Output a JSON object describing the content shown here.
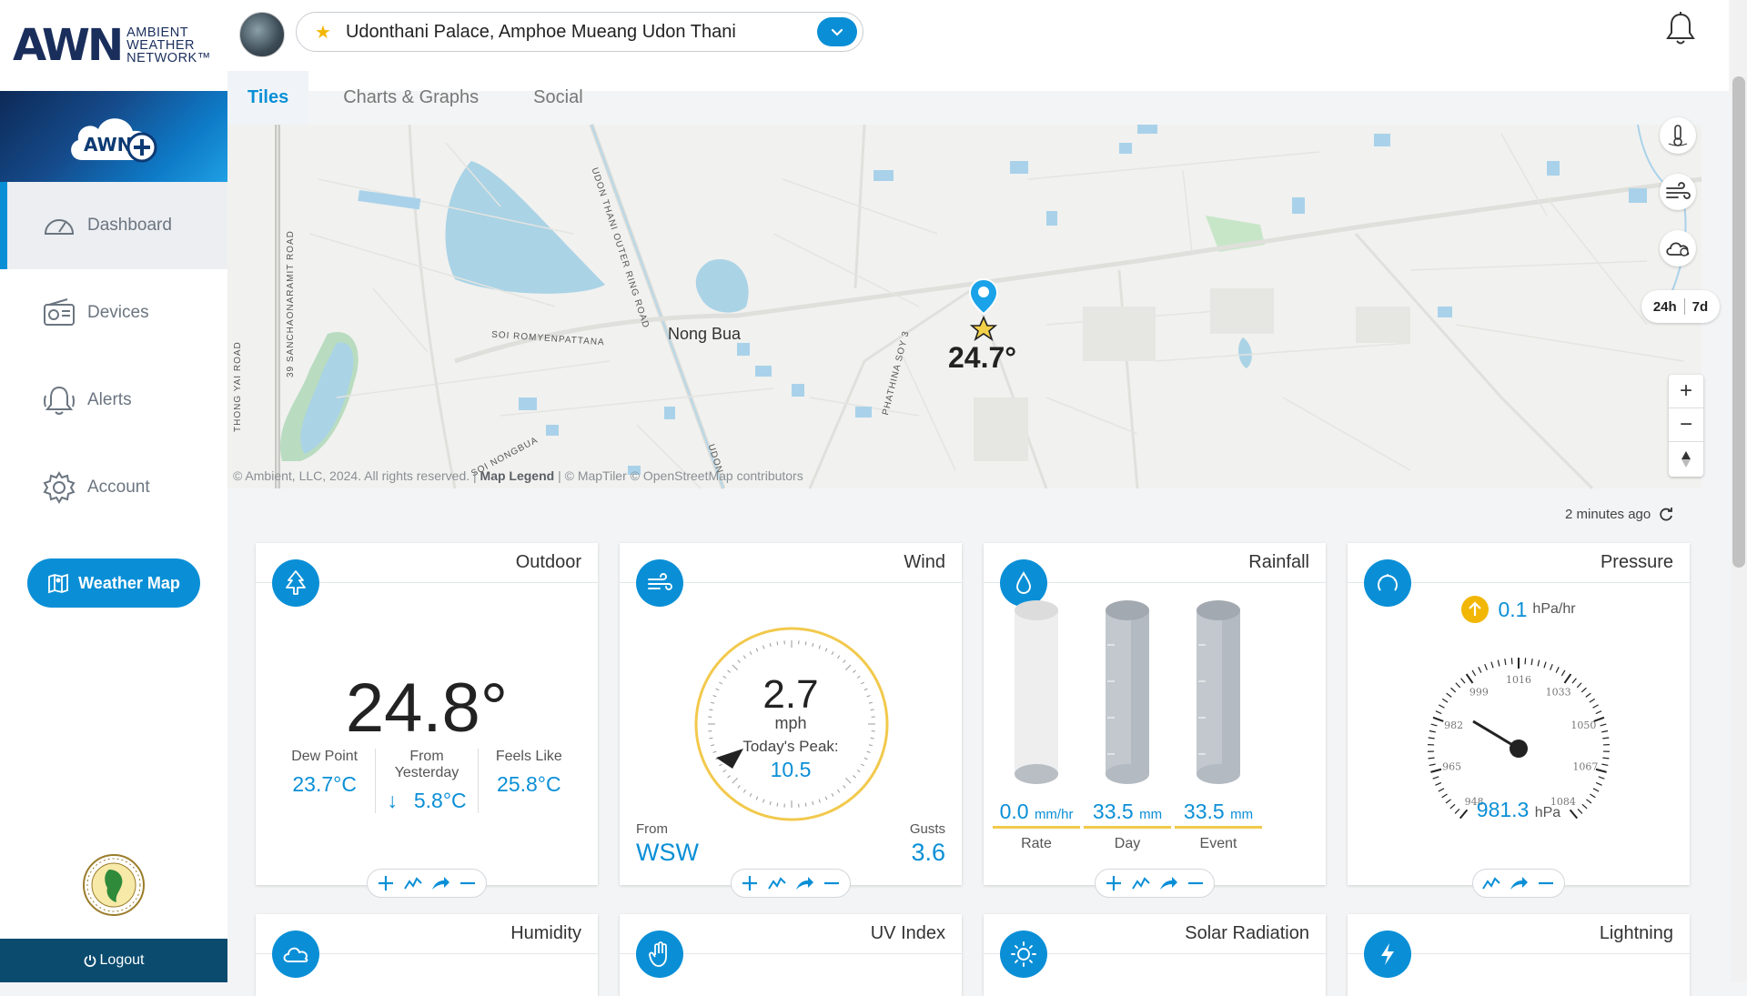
{
  "brand": {
    "logo_mark": "AWN",
    "logo_text": [
      "AMBIENT",
      "WEATHER",
      "NETWORK™"
    ]
  },
  "header": {
    "station_name": "Udonthani Palace, Amphoe Mueang Udon Thani"
  },
  "tabs": [
    {
      "label": "Tiles",
      "active": true
    },
    {
      "label": "Charts & Graphs",
      "active": false
    },
    {
      "label": "Social",
      "active": false
    }
  ],
  "sidebar": {
    "items": [
      {
        "label": "Dashboard",
        "icon": "dashboard-icon",
        "active": true
      },
      {
        "label": "Devices",
        "icon": "devices-icon"
      },
      {
        "label": "Alerts",
        "icon": "alerts-icon"
      },
      {
        "label": "Account",
        "icon": "gear-icon"
      }
    ],
    "weather_map_label": "Weather Map",
    "logout_label": "Logout"
  },
  "map": {
    "town": "Nong Bua",
    "labels": {
      "soi_romyen": "SOI ROMYENPATTANA",
      "soi_nongbua": "SOI NONGBUA",
      "sanchao": "39 SANCHAONARAMIT ROAD",
      "thongyai": "THONG YAI ROAD",
      "outer_ring": "UDON THANI OUTER RING ROAD",
      "udon": "UDON",
      "phathina": "PHATHINA SOY 3"
    },
    "station_temp": "24.7°",
    "attribution_pre": "© Ambient, LLC, 2024. All rights reserved. | ",
    "attribution_legend": "Map Legend",
    "attribution_post": " | © MapTiler © OpenStreetMap contributors",
    "range_24h": "24h",
    "range_7d": "7d"
  },
  "updated": "2 minutes ago",
  "tiles": {
    "outdoor": {
      "title": "Outdoor",
      "temp": "24.8°",
      "dew_label": "Dew Point",
      "dew_value": "23.7°C",
      "yest_label": "From Yesterday",
      "yest_arrow": "↓",
      "yest_value": "5.8°C",
      "feels_label": "Feels Like",
      "feels_value": "25.8°C"
    },
    "wind": {
      "title": "Wind",
      "speed": "2.7",
      "unit": "mph",
      "peak_label": "Today's Peak:",
      "peak_value": "10.5",
      "from_label": "From",
      "from_value": "WSW",
      "gusts_label": "Gusts",
      "gusts_value": "3.6"
    },
    "rainfall": {
      "title": "Rainfall",
      "rate_value": "0.0",
      "rate_unit": "mm/hr",
      "rate_label": "Rate",
      "day_value": "33.5",
      "day_unit": "mm",
      "day_label": "Day",
      "event_value": "33.5",
      "event_unit": "mm",
      "event_label": "Event"
    },
    "pressure": {
      "title": "Pressure",
      "trend_value": "0.1",
      "trend_unit": "hPa/hr",
      "value": "981.3",
      "unit": "hPa",
      "scale": [
        "948",
        "965",
        "982",
        "999",
        "1016",
        "1033",
        "1050",
        "1067",
        "1084"
      ]
    },
    "humidity": {
      "title": "Humidity"
    },
    "uv": {
      "title": "UV Index"
    },
    "solar": {
      "title": "Solar Radiation"
    },
    "lightning": {
      "title": "Lightning"
    }
  },
  "colors": {
    "accent": "#0a8fd6",
    "gauge_ring": "#f2c94c",
    "sidebar_bottom": "#0a4b6e"
  }
}
